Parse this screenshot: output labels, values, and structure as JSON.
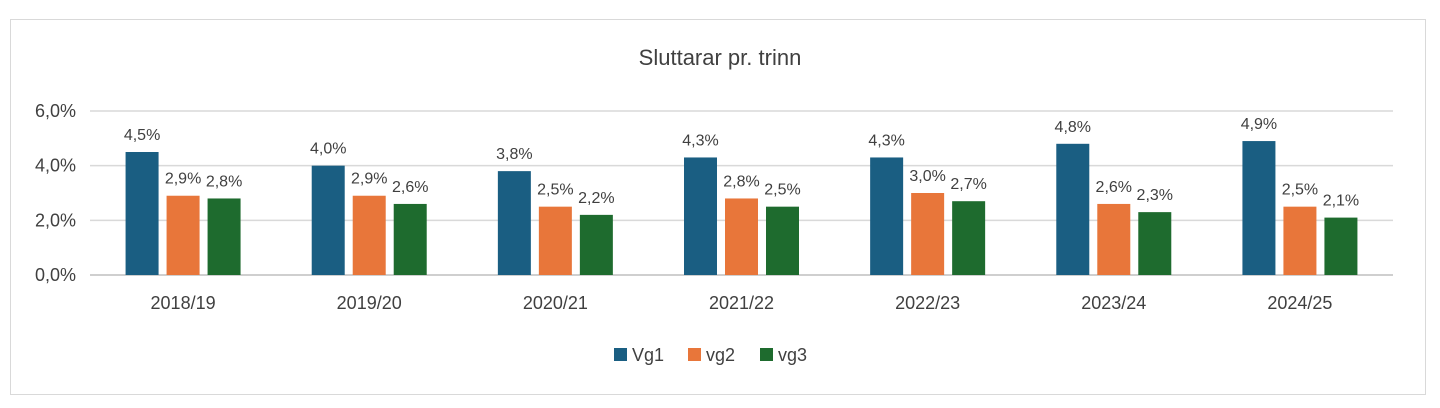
{
  "chart_data": {
    "type": "bar",
    "title": "Sluttarar pr. trinn",
    "xlabel": "",
    "ylabel": "",
    "categories": [
      "2018/19",
      "2019/20",
      "2020/21",
      "2021/22",
      "2022/23",
      "2023/24",
      "2024/25"
    ],
    "series": [
      {
        "name": "Vg1",
        "color": "#1a5e82",
        "values": [
          4.5,
          4.0,
          3.8,
          4.3,
          4.3,
          4.8,
          4.9
        ],
        "labels": [
          "4,5%",
          "4,0%",
          "3,8%",
          "4,3%",
          "4,3%",
          "4,8%",
          "4,9%"
        ]
      },
      {
        "name": "vg2",
        "color": "#e8763a",
        "values": [
          2.9,
          2.9,
          2.5,
          2.8,
          3.0,
          2.6,
          2.5
        ],
        "labels": [
          "2,9%",
          "2,9%",
          "2,5%",
          "2,8%",
          "3,0%",
          "2,6%",
          "2,5%"
        ]
      },
      {
        "name": "vg3",
        "color": "#1e6b2e",
        "values": [
          2.8,
          2.6,
          2.2,
          2.5,
          2.7,
          2.3,
          2.1
        ],
        "labels": [
          "2,8%",
          "2,6%",
          "2,2%",
          "2,5%",
          "2,7%",
          "2,3%",
          "2,1%"
        ]
      }
    ],
    "ylim": [
      0,
      6
    ],
    "yticks": [
      0,
      2,
      4,
      6
    ],
    "ytick_labels": [
      "0,0%",
      "2,0%",
      "4,0%",
      "6,0%"
    ],
    "grid": true,
    "legend": "bottom-center"
  }
}
